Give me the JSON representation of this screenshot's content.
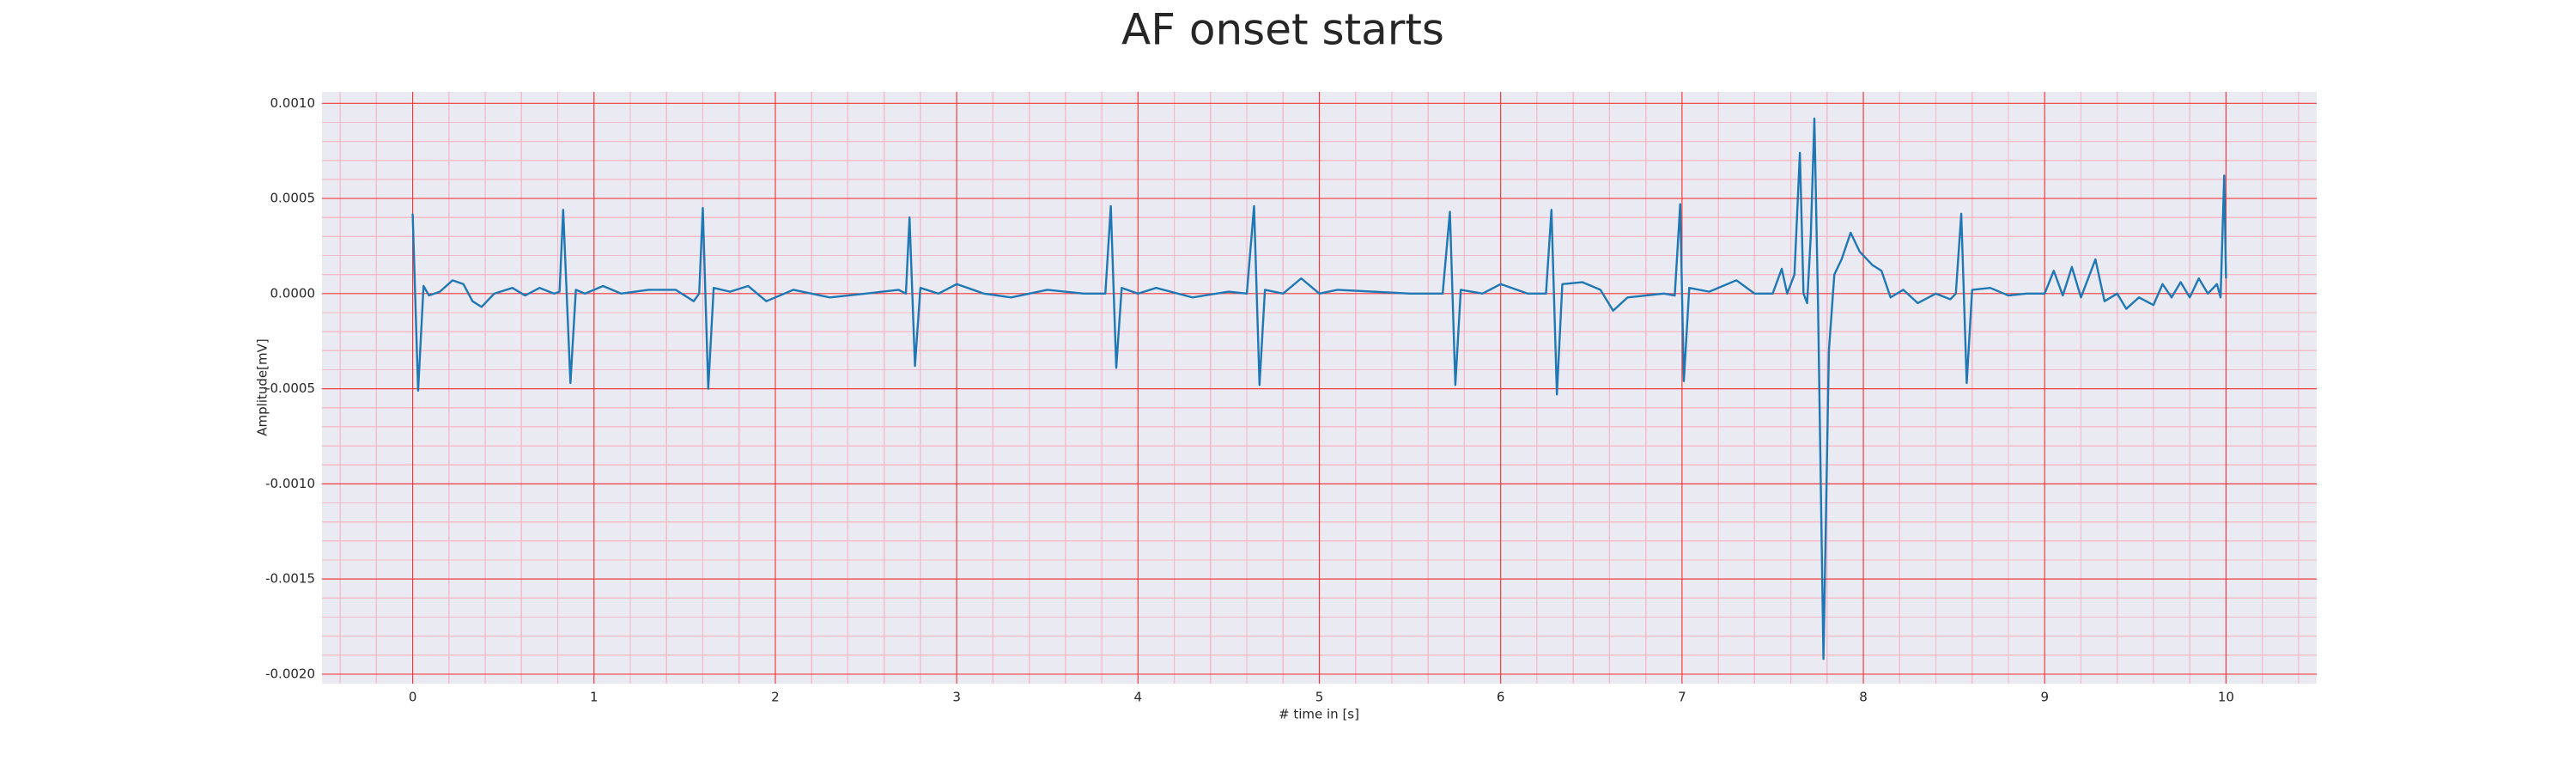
{
  "chart_data": {
    "type": "line",
    "title": "AF onset starts",
    "x_label": "# time in [s]",
    "y_label": "Amplitude[mV]",
    "xlim": [
      -0.5,
      10.5
    ],
    "ylim": [
      -0.00205,
      0.00106
    ],
    "xticks": [
      0,
      1,
      2,
      3,
      4,
      5,
      6,
      7,
      8,
      9,
      10
    ],
    "yticks": [
      {
        "value": 0.001,
        "label": "0.0010"
      },
      {
        "value": 0.0005,
        "label": "0.0005"
      },
      {
        "value": 0,
        "label": "0.0000"
      },
      {
        "value": -0.0005,
        "label": "-0.0005"
      },
      {
        "value": -0.001,
        "label": "-0.0010"
      },
      {
        "value": -0.0015,
        "label": "-0.0015"
      },
      {
        "value": -0.002,
        "label": "-0.0020"
      }
    ],
    "grid": true,
    "minor_grid": true,
    "background": "#eaeaf2",
    "grid_color": "#f03c3c",
    "minor_grid_color": "#f6b9c8",
    "series": [
      {
        "color": "#1f77b4",
        "x": [
          0.0,
          0.03,
          0.06,
          0.09,
          0.15,
          0.22,
          0.28,
          0.33,
          0.38,
          0.45,
          0.55,
          0.62,
          0.7,
          0.78,
          0.81,
          0.83,
          0.87,
          0.9,
          0.95,
          1.05,
          1.15,
          1.3,
          1.45,
          1.55,
          1.58,
          1.6,
          1.63,
          1.66,
          1.75,
          1.85,
          1.95,
          2.1,
          2.3,
          2.5,
          2.68,
          2.72,
          2.74,
          2.77,
          2.8,
          2.9,
          3.0,
          3.15,
          3.3,
          3.5,
          3.7,
          3.82,
          3.85,
          3.88,
          3.91,
          4.0,
          4.1,
          4.3,
          4.5,
          4.6,
          4.64,
          4.67,
          4.7,
          4.8,
          4.9,
          5.0,
          5.1,
          5.3,
          5.5,
          5.68,
          5.72,
          5.75,
          5.78,
          5.9,
          6.0,
          6.15,
          6.25,
          6.28,
          6.31,
          6.34,
          6.45,
          6.55,
          6.62,
          6.7,
          6.8,
          6.9,
          6.96,
          6.99,
          7.01,
          7.04,
          7.15,
          7.3,
          7.4,
          7.5,
          7.55,
          7.58,
          7.62,
          7.65,
          7.67,
          7.69,
          7.71,
          7.73,
          7.75,
          7.78,
          7.81,
          7.84,
          7.88,
          7.93,
          7.98,
          8.05,
          8.1,
          8.15,
          8.22,
          8.3,
          8.4,
          8.48,
          8.51,
          8.54,
          8.57,
          8.6,
          8.7,
          8.8,
          8.9,
          9.0,
          9.05,
          9.1,
          9.15,
          9.2,
          9.28,
          9.33,
          9.4,
          9.45,
          9.52,
          9.6,
          9.65,
          9.7,
          9.75,
          9.8,
          9.85,
          9.9,
          9.95,
          9.97,
          9.99,
          10.0
        ],
        "values": [
          0.00042,
          -0.00051,
          4e-05,
          -1e-05,
          1e-05,
          7e-05,
          5e-05,
          -4e-05,
          -7e-05,
          0,
          3e-05,
          -1e-05,
          3e-05,
          0,
          1e-05,
          0.00044,
          -0.00047,
          2e-05,
          0,
          4e-05,
          0,
          2e-05,
          2e-05,
          -4e-05,
          0,
          0.00045,
          -0.0005,
          3e-05,
          1e-05,
          4e-05,
          -4e-05,
          2e-05,
          -2e-05,
          0,
          2e-05,
          0,
          0.0004,
          -0.00038,
          3e-05,
          0,
          5e-05,
          0,
          -2e-05,
          2e-05,
          0,
          0,
          0.00046,
          -0.00039,
          3e-05,
          0,
          3e-05,
          -2e-05,
          1e-05,
          0,
          0.00046,
          -0.00048,
          2e-05,
          0,
          8e-05,
          0,
          2e-05,
          1e-05,
          0,
          0,
          0.00043,
          -0.00048,
          2e-05,
          0,
          5e-05,
          0,
          0,
          0.00044,
          -0.00053,
          5e-05,
          6e-05,
          2e-05,
          -9e-05,
          -2e-05,
          -1e-05,
          0,
          -1e-05,
          0.00047,
          -0.00046,
          3e-05,
          1e-05,
          7e-05,
          0,
          0,
          0.00013,
          0,
          0.0001,
          0.00074,
          0,
          -5e-05,
          0.0003,
          0.00092,
          -5e-05,
          -0.00192,
          -0.0003,
          0.0001,
          0.00018,
          0.00032,
          0.00022,
          0.00015,
          0.00012,
          -2e-05,
          2e-05,
          -5e-05,
          0,
          -3e-05,
          0,
          0.00042,
          -0.00047,
          2e-05,
          3e-05,
          -1e-05,
          0,
          0,
          0.00012,
          -1e-05,
          0.00014,
          -2e-05,
          0.00018,
          -4e-05,
          0,
          -8e-05,
          -2e-05,
          -6e-05,
          5e-05,
          -2e-05,
          6e-05,
          -2e-05,
          8e-05,
          0,
          5e-05,
          -2e-05,
          0.00062,
          8e-05
        ]
      }
    ]
  }
}
